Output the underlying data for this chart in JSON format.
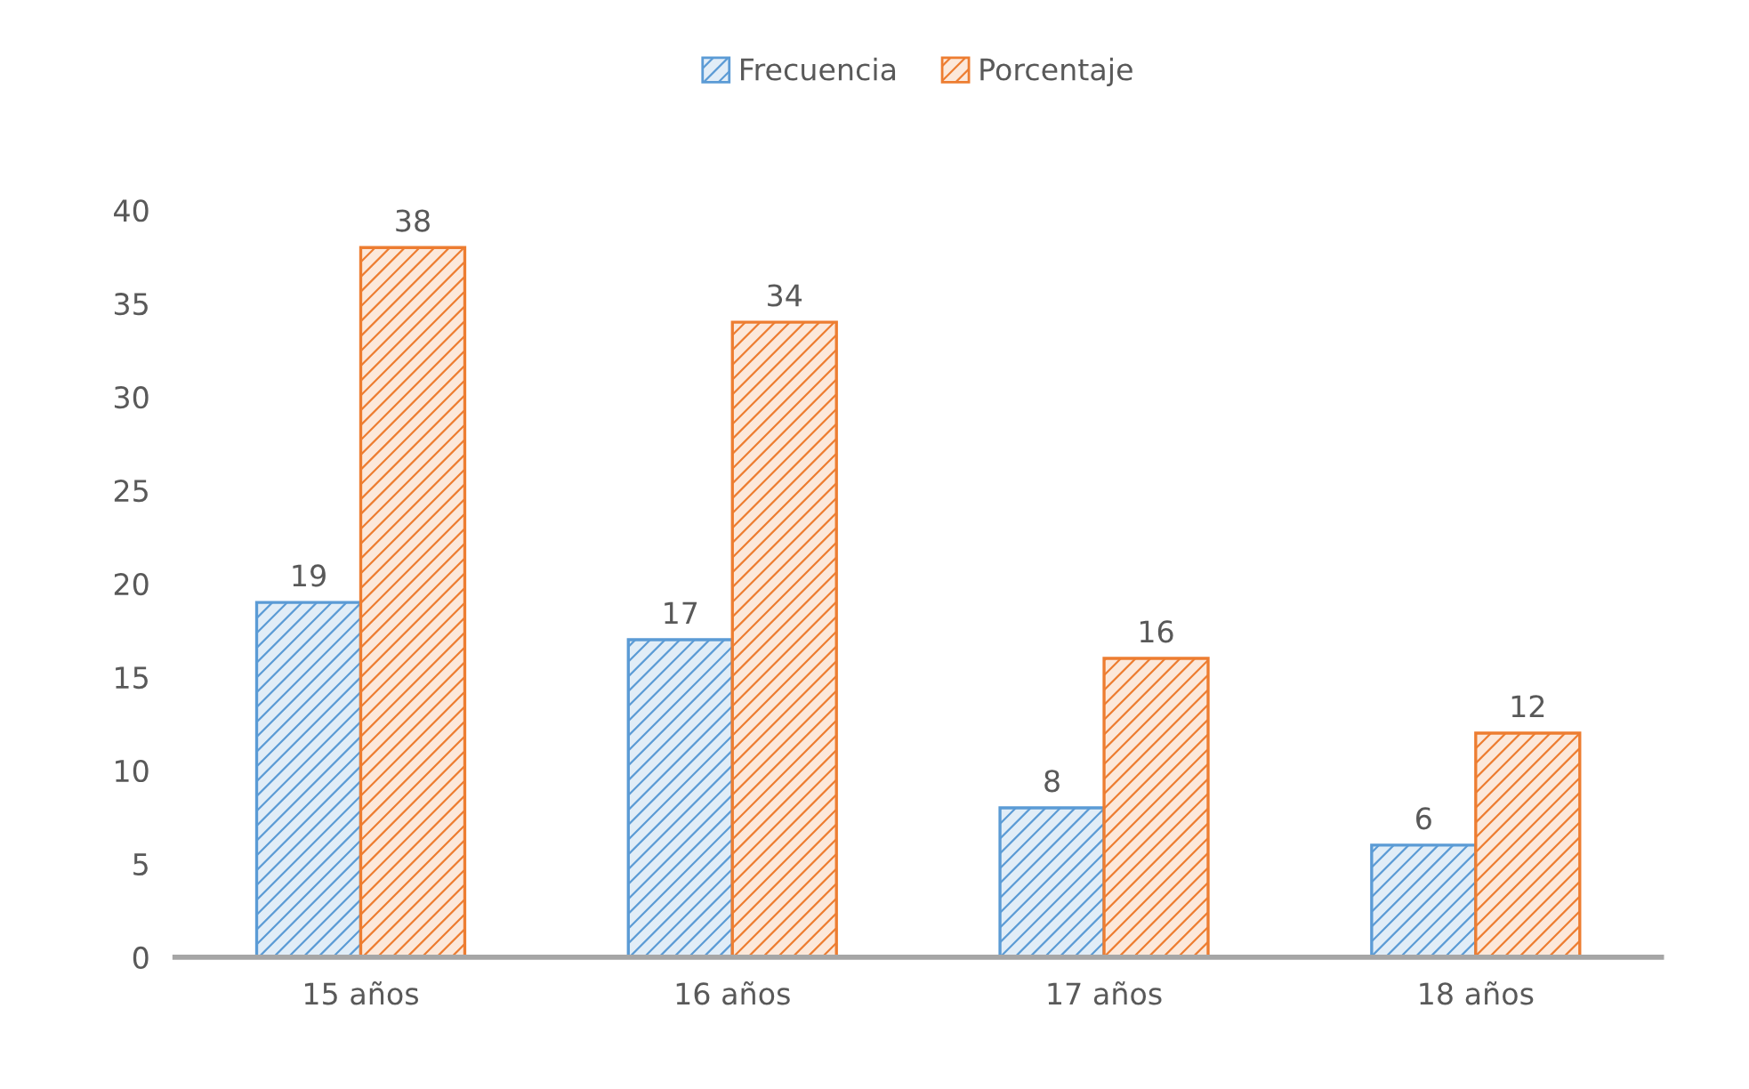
{
  "chart_data": {
    "type": "bar",
    "categories": [
      "15 años",
      "16 años",
      "17 años",
      "18 años"
    ],
    "series": [
      {
        "name": "Frecuencia",
        "color": "#5b9bd5",
        "values": [
          19,
          17,
          8,
          6
        ]
      },
      {
        "name": "Porcentaje",
        "color": "#ed7d31",
        "values": [
          38,
          34,
          16,
          12
        ]
      }
    ],
    "ylim": [
      0,
      40
    ],
    "yticks": [
      0,
      5,
      10,
      15,
      20,
      25,
      30,
      35,
      40
    ],
    "data_labels": true,
    "grid": false,
    "legend": "top"
  }
}
